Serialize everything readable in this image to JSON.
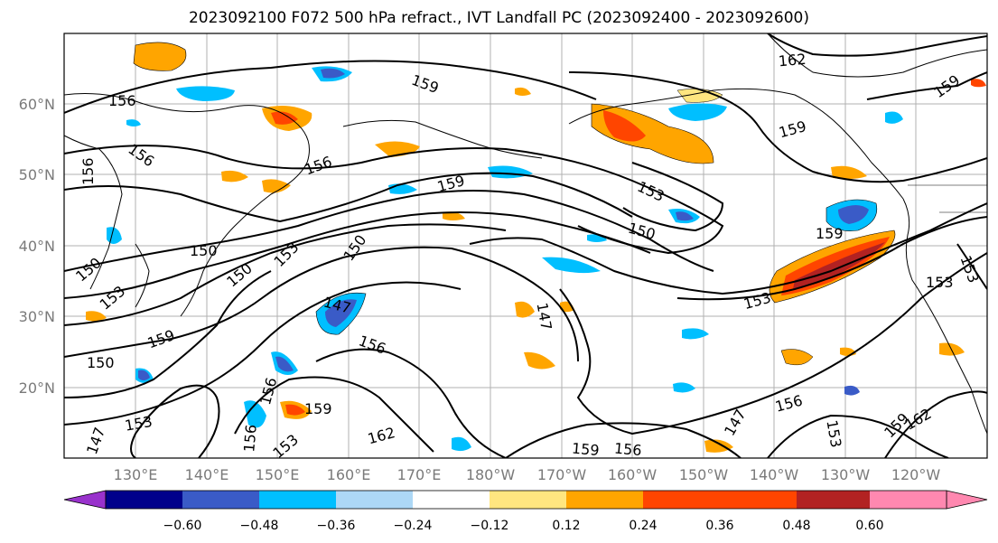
{
  "title": "2023092100 F072 500 hPa refract., IVT Landfall PC (2023092400 - 2023092600)",
  "lat_ticks": [
    "60°N",
    "50°N",
    "40°N",
    "30°N",
    "20°N"
  ],
  "lon_ticks": [
    "130°E",
    "140°E",
    "150°E",
    "160°E",
    "170°E",
    "180°W",
    "170°W",
    "160°W",
    "150°W",
    "140°W",
    "130°W",
    "120°W"
  ],
  "colorbar": {
    "colors": [
      "#9932CC",
      "#00008B",
      "#3A5BC7",
      "#00BFFF",
      "#ADD8F6",
      "#FFFFFF",
      "#FFE680",
      "#FFA500",
      "#FF4500",
      "#B22222",
      "#FF88B0"
    ],
    "tick_labels": [
      "−0.60",
      "−0.48",
      "−0.36",
      "−0.24",
      "−0.12",
      "0.12",
      "0.24",
      "0.36",
      "0.48",
      "0.60"
    ]
  },
  "contour_labels": [
    "156",
    "159",
    "156",
    "156",
    "156",
    "162",
    "159",
    "153",
    "150",
    "159",
    "159",
    "153",
    "150",
    "150",
    "153",
    "150",
    "153",
    "150",
    "159",
    "147",
    "156",
    "147",
    "159",
    "147",
    "153",
    "153",
    "156",
    "159",
    "162",
    "153",
    "150",
    "159",
    "156",
    "156",
    "153",
    "159",
    "162",
    "156",
    "153",
    "147"
  ]
}
